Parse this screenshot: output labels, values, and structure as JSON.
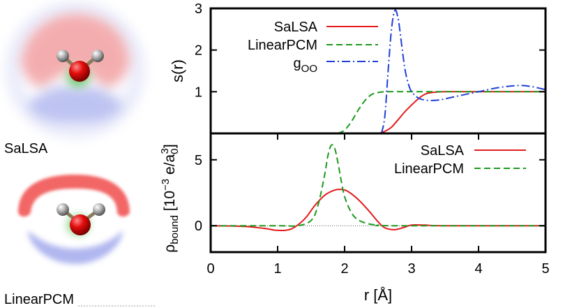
{
  "panels": {
    "salsa_label": "SaLSA",
    "linearpcm_label": "LinearPCM"
  },
  "chart_data": [
    {
      "type": "line",
      "ylabel": "s(r)",
      "xlim": [
        0,
        5
      ],
      "ylim": [
        0,
        3
      ],
      "yticks": [
        1,
        2,
        3
      ],
      "legend_position": "top-left",
      "series": [
        {
          "name": "SaLSA",
          "color": "#e41a1c",
          "style": "solid",
          "x": [
            2.4,
            2.5,
            2.6,
            2.7,
            2.8,
            2.9,
            3.0,
            3.1,
            3.2,
            3.3,
            3.5,
            4.0,
            5.0
          ],
          "y": [
            0.0,
            0.0,
            0.05,
            0.15,
            0.33,
            0.52,
            0.68,
            0.83,
            0.94,
            0.98,
            1.0,
            1.0,
            1.0
          ]
        },
        {
          "name": "LinearPCM",
          "color": "#1a9a1a",
          "style": "dashed",
          "x": [
            1.9,
            2.0,
            2.1,
            2.2,
            2.3,
            2.4,
            2.5,
            2.6,
            2.7,
            3.0,
            5.0
          ],
          "y": [
            0.0,
            0.08,
            0.28,
            0.55,
            0.78,
            0.93,
            0.98,
            1.0,
            1.0,
            1.0,
            1.0
          ]
        },
        {
          "name": "g_OO",
          "color": "#1f3fd8",
          "style": "dashdot",
          "x": [
            2.55,
            2.6,
            2.65,
            2.7,
            2.75,
            2.8,
            2.85,
            2.9,
            2.95,
            3.0,
            3.1,
            3.2,
            3.3,
            3.4,
            3.5,
            3.7,
            4.0,
            4.3,
            4.6,
            4.8,
            5.0
          ],
          "y": [
            0.0,
            0.4,
            1.5,
            2.5,
            2.95,
            2.75,
            2.15,
            1.55,
            1.2,
            1.0,
            0.85,
            0.8,
            0.79,
            0.8,
            0.83,
            0.9,
            1.0,
            1.1,
            1.15,
            1.12,
            1.05
          ]
        }
      ]
    },
    {
      "type": "line",
      "xlabel": "r [Å]",
      "ylabel": "ρbound [10−3 e/a03]",
      "ylabel_parts": {
        "main": "ρ",
        "sub1": "bound",
        "mid": " [10",
        "sup1": "−3",
        "after": " e/a",
        "sub2": "0",
        "sup2": "3",
        "end": "]"
      },
      "xlim": [
        0,
        5
      ],
      "ylim": [
        -2,
        7
      ],
      "xticks": [
        0,
        1,
        2,
        3,
        4,
        5
      ],
      "yticks": [
        0,
        5
      ],
      "zero_line": true,
      "legend_position": "top-right",
      "series": [
        {
          "name": "SaLSA",
          "color": "#e41a1c",
          "style": "solid",
          "x": [
            0,
            0.5,
            0.8,
            1.0,
            1.2,
            1.4,
            1.55,
            1.7,
            1.85,
            1.95,
            2.05,
            2.2,
            2.35,
            2.5,
            2.6,
            2.75,
            2.9,
            3.0,
            3.2,
            3.5,
            5.0
          ],
          "y": [
            0,
            -0.05,
            -0.2,
            -0.35,
            -0.25,
            0.5,
            1.5,
            2.3,
            2.7,
            2.75,
            2.6,
            2.0,
            1.2,
            0.3,
            -0.15,
            -0.3,
            -0.1,
            0.05,
            0.05,
            0,
            0
          ]
        },
        {
          "name": "LinearPCM",
          "color": "#1a9a1a",
          "style": "dashed",
          "x": [
            0,
            1.0,
            1.3,
            1.5,
            1.6,
            1.7,
            1.75,
            1.8,
            1.85,
            1.9,
            1.95,
            2.0,
            2.1,
            2.2,
            2.35,
            2.5,
            2.7,
            5.0
          ],
          "y": [
            0,
            0,
            0,
            0.4,
            1.5,
            3.8,
            5.3,
            6.1,
            5.9,
            4.8,
            3.4,
            2.2,
            1.0,
            0.45,
            0.15,
            0.05,
            0,
            0
          ]
        }
      ]
    }
  ]
}
